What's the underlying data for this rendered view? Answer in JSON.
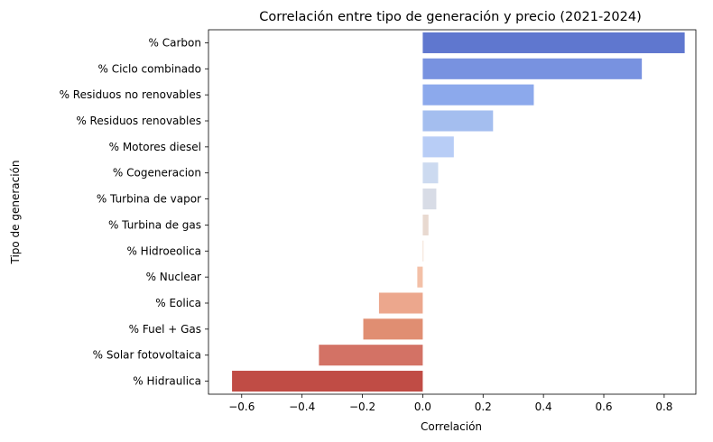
{
  "chart_data": {
    "type": "bar",
    "orientation": "horizontal",
    "title": "Correlación entre tipo de generación y precio (2021-2024)",
    "xlabel": "Correlación",
    "ylabel": "Tipo de generación",
    "xlim": [
      -0.71,
      0.905
    ],
    "xticks": [
      -0.6,
      -0.4,
      -0.2,
      0.0,
      0.2,
      0.4,
      0.6,
      0.8
    ],
    "xtick_labels": [
      "−0.6",
      "−0.4",
      "−0.2",
      "0.0",
      "0.2",
      "0.4",
      "0.6",
      "0.8"
    ],
    "grid": false,
    "palette": "coolwarm",
    "categories": [
      "% Carbon",
      "% Ciclo combinado",
      "% Residuos no renovables",
      "% Residuos renovables",
      "% Motores diesel",
      "% Cogeneracion",
      "% Turbina de vapor",
      "% Turbina de gas",
      "% Hidroeolica",
      "% Nuclear",
      "% Eolica",
      "% Fuel + Gas",
      "% Solar fotovoltaica",
      "% Hidraulica"
    ],
    "values": [
      0.868,
      0.726,
      0.368,
      0.233,
      0.103,
      0.051,
      0.045,
      0.019,
      0.002,
      -0.018,
      -0.145,
      -0.197,
      -0.344,
      -0.632
    ],
    "colors": [
      "#5f77cf",
      "#7892e0",
      "#8ca9ec",
      "#a4beef",
      "#b8cdf6",
      "#ccdaf0",
      "#d8dce6",
      "#e8d9d0",
      "#f0d8c8",
      "#f3c0a7",
      "#eca78d",
      "#e08e72",
      "#d37265",
      "#c04c45"
    ]
  }
}
